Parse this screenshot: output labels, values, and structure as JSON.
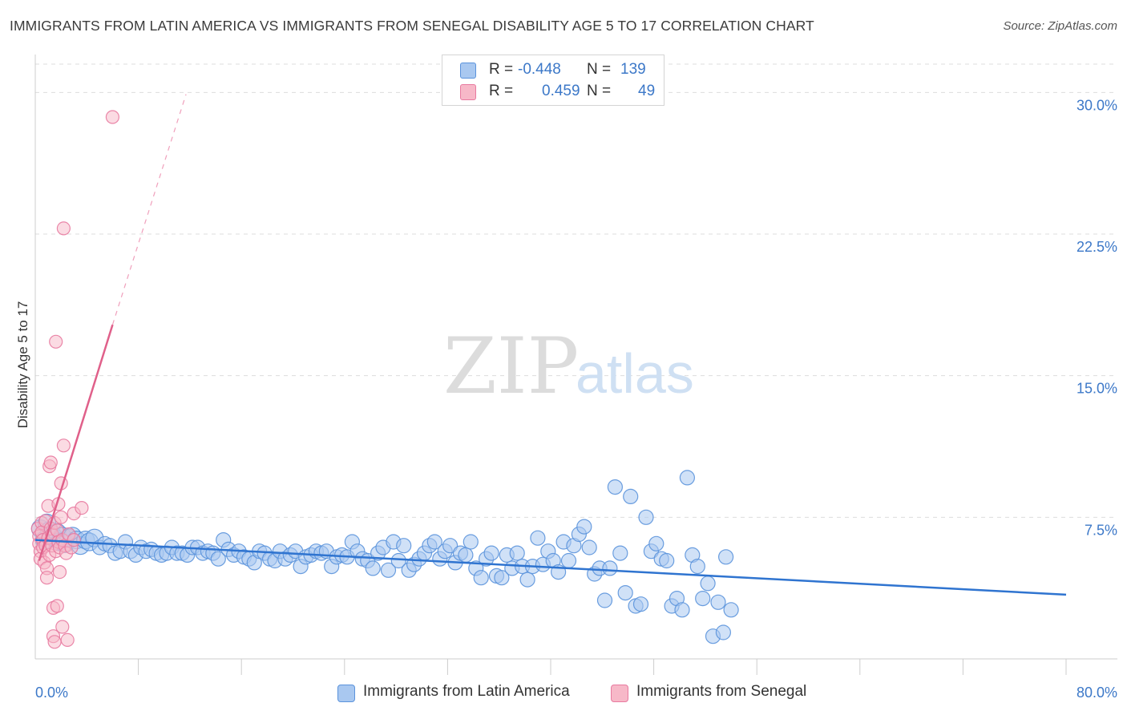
{
  "title": "IMMIGRANTS FROM LATIN AMERICA VS IMMIGRANTS FROM SENEGAL DISABILITY AGE 5 TO 17 CORRELATION CHART",
  "source": "Source: ZipAtlas.com",
  "watermark": {
    "zip": "ZIP",
    "atlas": "atlas"
  },
  "legend": {
    "rows": [
      {
        "r_label": "R =",
        "r_value": "-0.448",
        "n_label": "N =",
        "n_value": "139",
        "color": "#a9c8f0"
      },
      {
        "r_label": "R =",
        "r_value": "0.459",
        "n_label": "N =",
        "n_value": "49",
        "color": "#f7b8c8"
      }
    ]
  },
  "bottom_legend": [
    {
      "label": "Immigrants from Latin America",
      "color": "#a9c8f0"
    },
    {
      "label": "Immigrants from Senegal",
      "color": "#f7b8c8"
    }
  ],
  "chart_data": {
    "type": "scatter",
    "title": "IMMIGRANTS FROM LATIN AMERICA VS IMMIGRANTS FROM SENEGAL DISABILITY AGE 5 TO 17 CORRELATION CHART",
    "xlabel": "",
    "ylabel": "Disability Age 5 to 17",
    "xlim": [
      0,
      80
    ],
    "ylim": [
      0,
      31.5
    ],
    "x_ticks": [
      "0.0%",
      "80.0%"
    ],
    "y_ticks": [
      {
        "value": 7.5,
        "label": "7.5%"
      },
      {
        "value": 15.0,
        "label": "15.0%"
      },
      {
        "value": 22.5,
        "label": "22.5%"
      },
      {
        "value": 30.0,
        "label": "30.0%"
      }
    ],
    "grid": true,
    "legend_position": "top-center",
    "series": [
      {
        "name": "Immigrants from Latin America",
        "color": "#5b93dc",
        "fill": "#a9c8f0",
        "trend": {
          "x": [
            0,
            80
          ],
          "y": [
            6.3,
            3.4
          ]
        },
        "points": [
          [
            0.4,
            6.9
          ],
          [
            0.7,
            6.3
          ],
          [
            0.9,
            7.2
          ],
          [
            1.1,
            6.8
          ],
          [
            1.3,
            6.6
          ],
          [
            1.5,
            6.4
          ],
          [
            1.7,
            6.7
          ],
          [
            1.9,
            6.2
          ],
          [
            2.1,
            6.5
          ],
          [
            2.3,
            6.1
          ],
          [
            2.6,
            6.4
          ],
          [
            2.9,
            6.5
          ],
          [
            3.2,
            6.3
          ],
          [
            3.5,
            6.0
          ],
          [
            3.9,
            6.3
          ],
          [
            4.2,
            6.2
          ],
          [
            4.6,
            6.4
          ],
          [
            5.0,
            5.9
          ],
          [
            5.4,
            6.1
          ],
          [
            5.8,
            6.0
          ],
          [
            6.2,
            5.6
          ],
          [
            6.6,
            5.7
          ],
          [
            7.0,
            6.2
          ],
          [
            7.4,
            5.7
          ],
          [
            7.8,
            5.5
          ],
          [
            8.2,
            5.9
          ],
          [
            8.6,
            5.7
          ],
          [
            9.0,
            5.8
          ],
          [
            9.4,
            5.6
          ],
          [
            9.8,
            5.5
          ],
          [
            10.2,
            5.6
          ],
          [
            10.6,
            5.9
          ],
          [
            11.0,
            5.6
          ],
          [
            11.4,
            5.6
          ],
          [
            11.8,
            5.5
          ],
          [
            12.2,
            5.9
          ],
          [
            12.6,
            5.9
          ],
          [
            13.0,
            5.6
          ],
          [
            13.4,
            5.7
          ],
          [
            13.8,
            5.6
          ],
          [
            14.2,
            5.3
          ],
          [
            14.6,
            6.3
          ],
          [
            15.0,
            5.8
          ],
          [
            15.4,
            5.5
          ],
          [
            15.8,
            5.7
          ],
          [
            16.2,
            5.4
          ],
          [
            16.6,
            5.3
          ],
          [
            17.0,
            5.1
          ],
          [
            17.4,
            5.7
          ],
          [
            17.8,
            5.6
          ],
          [
            18.2,
            5.3
          ],
          [
            18.6,
            5.2
          ],
          [
            19.0,
            5.7
          ],
          [
            19.4,
            5.3
          ],
          [
            19.8,
            5.5
          ],
          [
            20.2,
            5.7
          ],
          [
            20.6,
            4.9
          ],
          [
            21.0,
            5.4
          ],
          [
            21.4,
            5.5
          ],
          [
            21.8,
            5.7
          ],
          [
            22.2,
            5.6
          ],
          [
            22.6,
            5.7
          ],
          [
            23.0,
            4.9
          ],
          [
            23.4,
            5.4
          ],
          [
            23.8,
            5.5
          ],
          [
            24.2,
            5.4
          ],
          [
            24.6,
            6.2
          ],
          [
            25.0,
            5.7
          ],
          [
            25.4,
            5.3
          ],
          [
            25.8,
            5.2
          ],
          [
            26.2,
            4.8
          ],
          [
            26.6,
            5.6
          ],
          [
            27.0,
            5.9
          ],
          [
            27.4,
            4.7
          ],
          [
            27.8,
            6.2
          ],
          [
            28.2,
            5.2
          ],
          [
            28.6,
            6.0
          ],
          [
            29.0,
            4.7
          ],
          [
            29.4,
            5.0
          ],
          [
            29.8,
            5.3
          ],
          [
            30.2,
            5.6
          ],
          [
            30.6,
            6.0
          ],
          [
            31.0,
            6.2
          ],
          [
            31.4,
            5.3
          ],
          [
            31.8,
            5.7
          ],
          [
            32.2,
            6.0
          ],
          [
            32.6,
            5.1
          ],
          [
            33.0,
            5.6
          ],
          [
            33.4,
            5.5
          ],
          [
            33.8,
            6.2
          ],
          [
            34.2,
            4.8
          ],
          [
            34.6,
            4.3
          ],
          [
            35.0,
            5.3
          ],
          [
            35.4,
            5.6
          ],
          [
            35.8,
            4.4
          ],
          [
            36.2,
            4.3
          ],
          [
            36.6,
            5.5
          ],
          [
            37.0,
            4.8
          ],
          [
            37.4,
            5.6
          ],
          [
            37.8,
            4.9
          ],
          [
            38.2,
            4.2
          ],
          [
            38.6,
            4.9
          ],
          [
            39.0,
            6.4
          ],
          [
            39.4,
            5.0
          ],
          [
            39.8,
            5.7
          ],
          [
            40.2,
            5.2
          ],
          [
            40.6,
            4.6
          ],
          [
            41.0,
            6.2
          ],
          [
            41.4,
            5.2
          ],
          [
            41.8,
            6.0
          ],
          [
            42.2,
            6.6
          ],
          [
            42.6,
            7.0
          ],
          [
            43.0,
            5.9
          ],
          [
            43.4,
            4.5
          ],
          [
            43.8,
            4.8
          ],
          [
            44.2,
            3.1
          ],
          [
            44.6,
            4.8
          ],
          [
            45.0,
            9.1
          ],
          [
            45.4,
            5.6
          ],
          [
            45.8,
            3.5
          ],
          [
            46.2,
            8.6
          ],
          [
            46.6,
            2.8
          ],
          [
            47.0,
            2.9
          ],
          [
            47.4,
            7.5
          ],
          [
            47.8,
            5.7
          ],
          [
            48.2,
            6.1
          ],
          [
            48.6,
            5.3
          ],
          [
            49.0,
            5.2
          ],
          [
            49.4,
            2.8
          ],
          [
            49.8,
            3.2
          ],
          [
            50.2,
            2.6
          ],
          [
            50.6,
            9.6
          ],
          [
            51.0,
            5.5
          ],
          [
            51.4,
            4.9
          ],
          [
            51.8,
            3.2
          ],
          [
            52.2,
            4.0
          ],
          [
            52.6,
            1.2
          ],
          [
            53.0,
            3.0
          ],
          [
            53.4,
            1.4
          ],
          [
            53.6,
            5.4
          ],
          [
            54.0,
            2.6
          ]
        ]
      },
      {
        "name": "Immigrants from Senegal",
        "color": "#e87aa0",
        "fill": "#f7b8c8",
        "trend": {
          "x": [
            0.3,
            6.0
          ],
          "y": [
            5.2,
            17.7
          ]
        },
        "trend_extension": {
          "x": [
            6.0,
            11.7
          ],
          "y": [
            17.7,
            29.9
          ]
        },
        "points": [
          [
            0.2,
            6.9
          ],
          [
            0.3,
            6.5
          ],
          [
            0.3,
            6.1
          ],
          [
            0.4,
            5.7
          ],
          [
            0.4,
            5.3
          ],
          [
            0.5,
            7.2
          ],
          [
            0.5,
            6.7
          ],
          [
            0.6,
            6.3
          ],
          [
            0.6,
            5.9
          ],
          [
            0.7,
            5.1
          ],
          [
            0.8,
            7.3
          ],
          [
            0.8,
            6.0
          ],
          [
            0.9,
            4.8
          ],
          [
            0.9,
            4.3
          ],
          [
            1.0,
            6.4
          ],
          [
            1.0,
            8.1
          ],
          [
            1.1,
            10.2
          ],
          [
            1.1,
            5.5
          ],
          [
            1.2,
            6.9
          ],
          [
            1.2,
            10.4
          ],
          [
            1.3,
            6.0
          ],
          [
            1.3,
            6.6
          ],
          [
            1.4,
            1.2
          ],
          [
            1.4,
            2.7
          ],
          [
            1.5,
            7.2
          ],
          [
            1.5,
            0.9
          ],
          [
            1.6,
            5.7
          ],
          [
            1.6,
            16.8
          ],
          [
            1.7,
            6.8
          ],
          [
            1.7,
            2.8
          ],
          [
            1.8,
            8.2
          ],
          [
            1.8,
            6.2
          ],
          [
            1.9,
            4.6
          ],
          [
            1.9,
            5.9
          ],
          [
            2.0,
            7.5
          ],
          [
            2.0,
            9.3
          ],
          [
            2.1,
            6.3
          ],
          [
            2.1,
            1.7
          ],
          [
            2.2,
            11.3
          ],
          [
            2.2,
            22.8
          ],
          [
            2.3,
            6.0
          ],
          [
            2.4,
            5.6
          ],
          [
            2.5,
            1.0
          ],
          [
            2.6,
            6.6
          ],
          [
            2.8,
            5.9
          ],
          [
            3.0,
            7.7
          ],
          [
            3.0,
            6.3
          ],
          [
            3.6,
            8.0
          ],
          [
            6.0,
            28.7
          ]
        ]
      }
    ]
  }
}
